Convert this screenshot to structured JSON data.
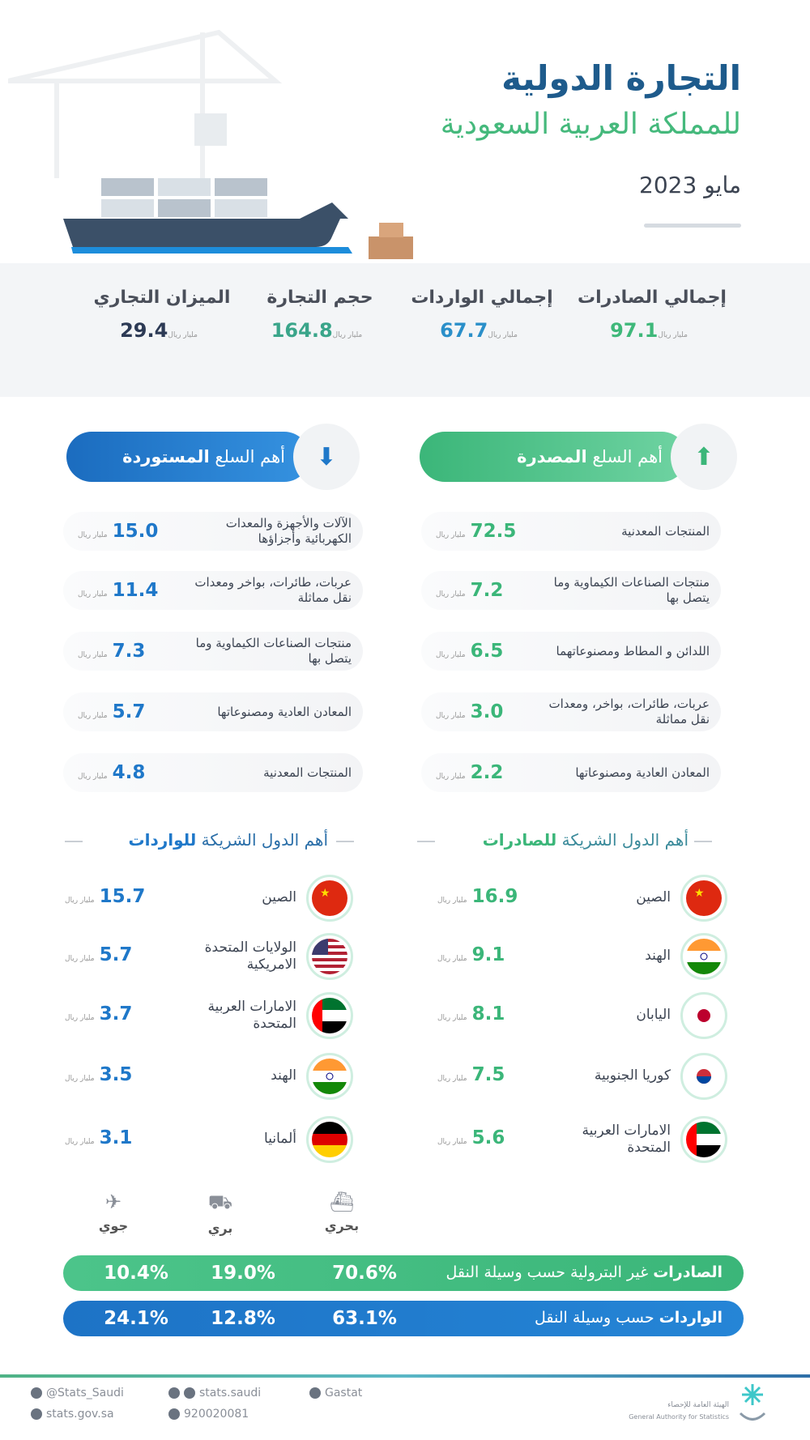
{
  "header": {
    "title_line1": "التجارة الدولية",
    "title_line2": "للمملكة العربية السعودية",
    "period": "مايو 2023"
  },
  "unit": "مليار ريال",
  "colors": {
    "green": "#3fb87a",
    "blue": "#1f78c9",
    "dark": "#2c3a55"
  },
  "stats": [
    {
      "label": "إجمالي الصادرات",
      "value": "97.1",
      "color": "#3fb87a"
    },
    {
      "label": "إجمالي الواردات",
      "value": "67.7",
      "color": "#2a8fc9"
    },
    {
      "label": "حجم التجارة",
      "value": "164.8",
      "color": "#3aa58a"
    },
    {
      "label": "الميزان التجاري",
      "value": "29.4",
      "color": "#2c3a55"
    }
  ],
  "exports": {
    "header_prefix": "أهم السلع",
    "header_bold": "المصدرة",
    "icon": "box-up-icon",
    "items": [
      {
        "name": "المنتجات المعدنية",
        "value": "72.5"
      },
      {
        "name": "منتجات الصناعات الكيماوية وما يتصل بها",
        "value": "7.2"
      },
      {
        "name": "اللدائن و المطاط ومصنوعاتهما",
        "value": "6.5"
      },
      {
        "name": "عربات، طائرات، بواخر، ومعدات نقل مماثلة",
        "value": "3.0"
      },
      {
        "name": "المعادن العادية ومصنوعاتها",
        "value": "2.2"
      }
    ]
  },
  "imports": {
    "header_prefix": "أهم السلع",
    "header_bold": "المستوردة",
    "icon": "box-down-icon",
    "items": [
      {
        "name": "الآلات والأجهزة والمعدات الكهربائية وأجزاؤها",
        "value": "15.0"
      },
      {
        "name": "عربات، طائرات، بواخر ومعدات نقل مماثلة",
        "value": "11.4"
      },
      {
        "name": "منتجات الصناعات الكيماوية وما يتصل بها",
        "value": "7.3"
      },
      {
        "name": "المعادن العادية ومصنوعاتها",
        "value": "5.7"
      },
      {
        "name": "المنتجات المعدنية",
        "value": "4.8"
      }
    ]
  },
  "export_partners": {
    "heading_prefix": "أهم الدول الشريكة",
    "heading_bold": "للصادرات",
    "items": [
      {
        "name": "الصين",
        "value": "16.9",
        "flag": "china"
      },
      {
        "name": "الهند",
        "value": "9.1",
        "flag": "india"
      },
      {
        "name": "اليابان",
        "value": "8.1",
        "flag": "japan"
      },
      {
        "name": "كوريا الجنوبية",
        "value": "7.5",
        "flag": "korea"
      },
      {
        "name": "الامارات العربية المتحدة",
        "value": "5.6",
        "flag": "uae"
      }
    ]
  },
  "import_partners": {
    "heading_prefix": "أهم الدول الشريكة",
    "heading_bold": "للواردات",
    "items": [
      {
        "name": "الصين",
        "value": "15.7",
        "flag": "china"
      },
      {
        "name": "الولايات المتحدة الامريكية",
        "value": "5.7",
        "flag": "usa"
      },
      {
        "name": "الامارات العربية المتحدة",
        "value": "3.7",
        "flag": "uae"
      },
      {
        "name": "الهند",
        "value": "3.5",
        "flag": "india"
      },
      {
        "name": "ألمانيا",
        "value": "3.1",
        "flag": "germany"
      }
    ]
  },
  "transport": {
    "modes": [
      {
        "label": "بحري",
        "icon": "ship-icon"
      },
      {
        "label": "بري",
        "icon": "truck-icon"
      },
      {
        "label": "جوي",
        "icon": "plane-icon"
      }
    ],
    "exports": {
      "label_bold": "الصادرات",
      "label_rest": "غير البترولية حسب وسيلة النقل",
      "values": [
        "70.6%",
        "19.0%",
        "10.4%"
      ]
    },
    "imports": {
      "label_bold": "الواردات",
      "label_rest": "حسب وسيلة النقل",
      "values": [
        "63.1%",
        "12.8%",
        "24.1%"
      ]
    }
  },
  "footer": {
    "twitter": "@Stats_Saudi",
    "website": "stats.gov.sa",
    "social": "stats.saudi",
    "phone": "920020081",
    "linkedin": "Gastat",
    "org_ar": "الهيئة العامة للإحصاء",
    "org_en": "General Authority for Statistics"
  }
}
